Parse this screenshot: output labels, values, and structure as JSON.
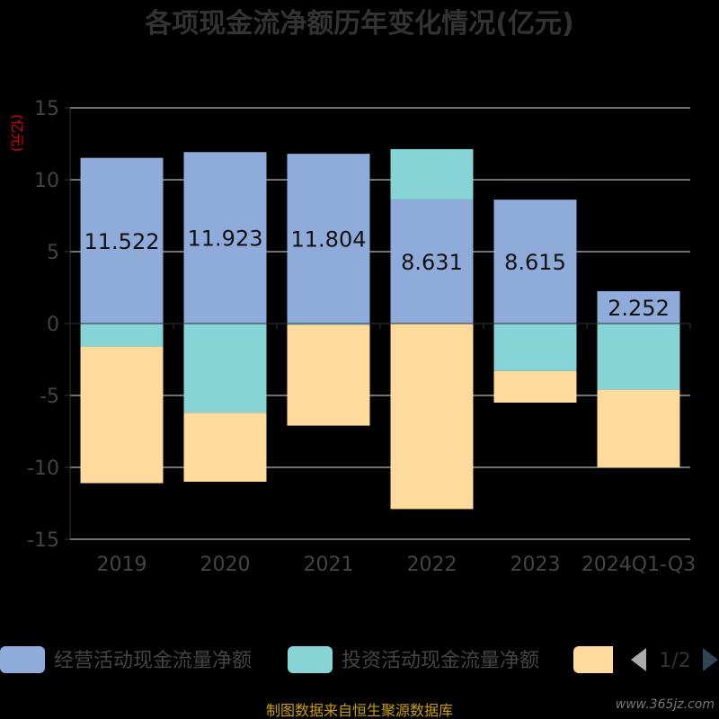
{
  "chart_data": {
    "type": "bar",
    "title": "各项现金流净额历年变化情况(亿元)",
    "ylabel": "(亿元)",
    "ylim": [
      -15,
      15
    ],
    "yticks": [
      15,
      10,
      5,
      0,
      -5,
      -10,
      -15
    ],
    "categories": [
      "2019",
      "2020",
      "2021",
      "2022",
      "2023",
      "2024Q1-Q3"
    ],
    "series": [
      {
        "name": "经营活动现金流量净额",
        "color": "#8eabd9",
        "values": [
          11.522,
          11.923,
          11.804,
          8.631,
          8.615,
          2.252
        ],
        "labels": [
          "11.522",
          "11.923",
          "11.804",
          "8.631",
          "8.615",
          "2.252"
        ]
      },
      {
        "name": "投资活动现金流量净额",
        "color": "#86d4d6",
        "values": [
          -1.6,
          -6.2,
          -0.1,
          3.5,
          -3.3,
          -4.6
        ]
      },
      {
        "name": "",
        "color": "#fedb9c",
        "values": [
          -9.5,
          -4.8,
          -7.0,
          -12.9,
          -2.2,
          -5.4
        ]
      }
    ],
    "legend": {
      "position": "bottom",
      "page": "1/2"
    },
    "grid": true
  },
  "footer": {
    "source": "制图数据来自恒生聚源数据库",
    "watermark": "www.365jz.com"
  }
}
